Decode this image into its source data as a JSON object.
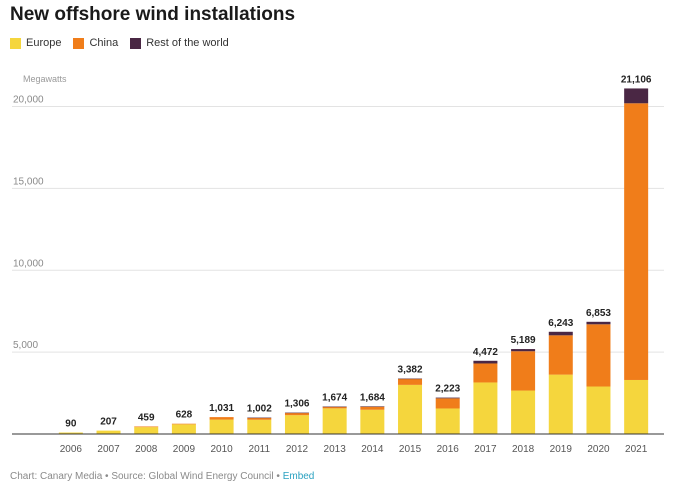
{
  "chart_data": {
    "type": "bar",
    "stacked": true,
    "title": "New offshore wind installations",
    "ylabel": "Megawatts",
    "ylim": [
      0,
      21500
    ],
    "yticks": [
      5000,
      10000,
      15000,
      20000
    ],
    "ytick_labels": [
      "5,000",
      "10,000",
      "15,000",
      "20,000"
    ],
    "grid": true,
    "legend_position": "top-left",
    "categories": [
      "2006",
      "2007",
      "2008",
      "2009",
      "2010",
      "2011",
      "2012",
      "2013",
      "2014",
      "2015",
      "2016",
      "2017",
      "2018",
      "2019",
      "2020",
      "2021"
    ],
    "series": [
      {
        "name": "Europe",
        "color": "#f5d63d",
        "values": [
          90,
          207,
          420,
          590,
          880,
          870,
          1150,
          1567,
          1483,
          3000,
          1559,
          3148,
          2654,
          3627,
          2900,
          3300
        ]
      },
      {
        "name": "China",
        "color": "#f07d1a",
        "values": [
          0,
          0,
          39,
          38,
          151,
          109,
          130,
          97,
          200,
          380,
          620,
          1160,
          2400,
          2400,
          3800,
          16900
        ]
      },
      {
        "name": "Rest of the world",
        "color": "#4a2744",
        "values": [
          0,
          0,
          0,
          0,
          0,
          23,
          26,
          10,
          1,
          2,
          44,
          164,
          135,
          216,
          153,
          906
        ]
      }
    ],
    "totals": [
      90,
      207,
      459,
      628,
      1031,
      1002,
      1306,
      1674,
      1684,
      3382,
      2223,
      4472,
      5189,
      6243,
      6853,
      21106
    ],
    "total_labels": [
      "90",
      "207",
      "459",
      "628",
      "1,031",
      "1,002",
      "1,306",
      "1,674",
      "1,684",
      "3,382",
      "2,223",
      "4,472",
      "5,189",
      "6,243",
      "6,853",
      "21,106"
    ]
  },
  "footer": {
    "source_text": "Chart: Canary Media • Source: Global Wind Energy Council • ",
    "embed_label": "Embed"
  }
}
